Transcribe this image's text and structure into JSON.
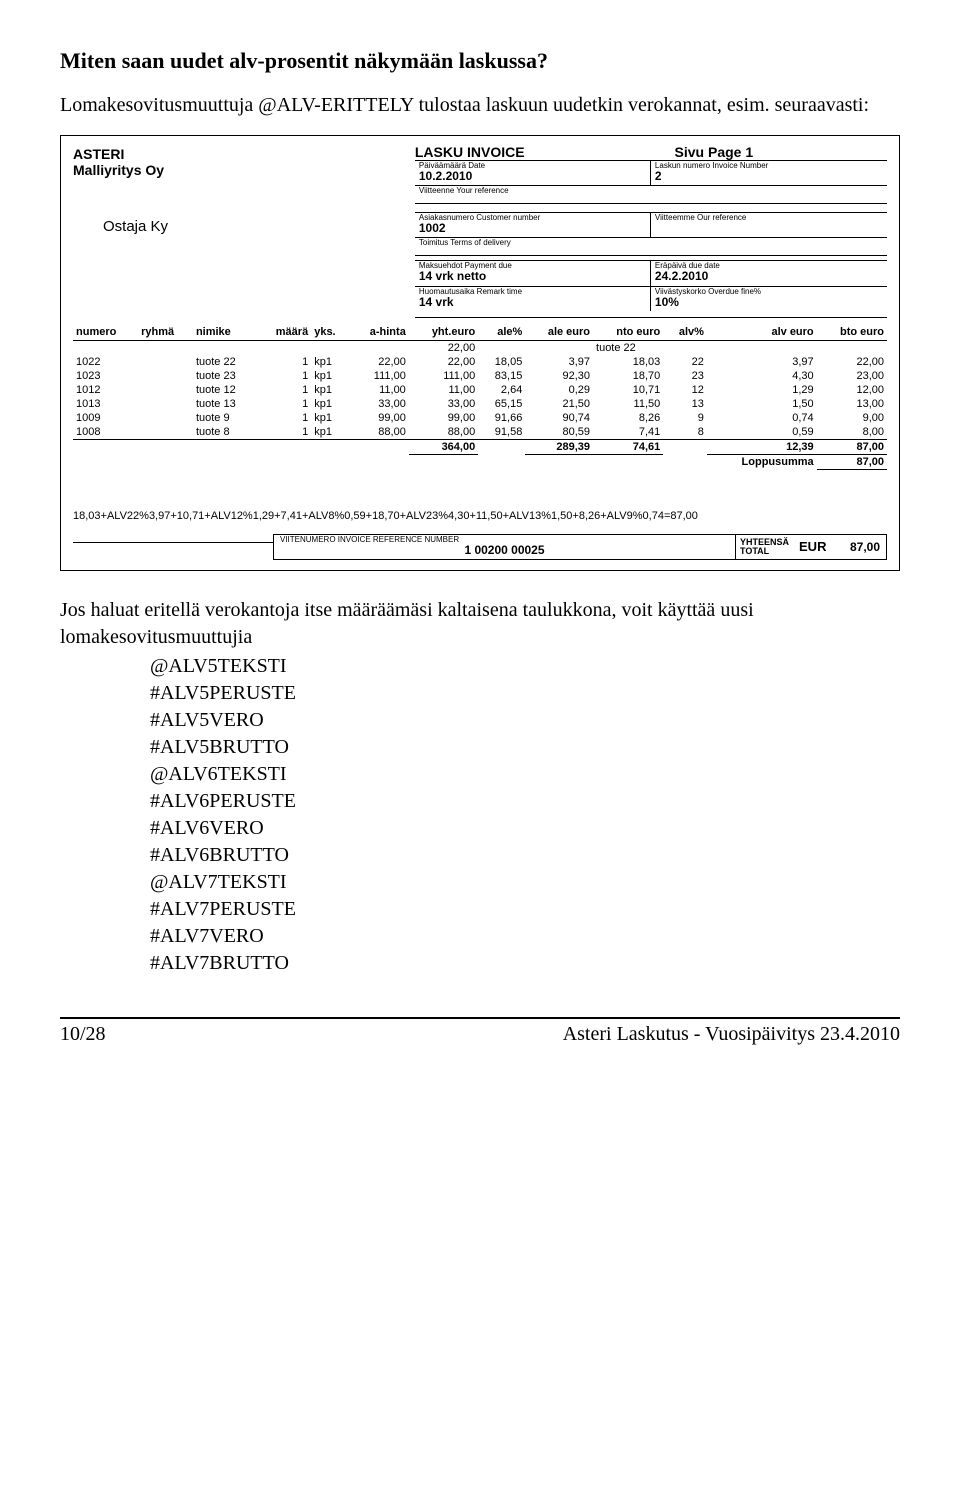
{
  "heading": "Miten saan uudet alv-prosentit näkymään laskussa?",
  "intro": "Lomakesovitusmuuttuja @ALV-ERITTELY tulostaa laskuun uudetkin verokannat, esim. seuraavasti:",
  "invoice": {
    "company_line1": "ASTERI",
    "company_line2": "Malliyritys Oy",
    "buyer": "Ostaja Ky",
    "title": "LASKU INVOICE",
    "page": "Sivu Page 1",
    "meta": {
      "date_label": "Päiväämäärä  Date",
      "date_value": "10.2.2010",
      "invno_label": "Laskun numero  Invoice Number",
      "invno_value": "2",
      "yourref_label": "Viitteenne  Your reference",
      "yourref_value": "",
      "custno_label": "Asiakasnumero  Customer number",
      "custno_value": "1002",
      "ourref_label": "Viitteemme  Our reference",
      "ourref_value": "",
      "delivery_label": "Toimitus  Terms of delivery",
      "delivery_value": "",
      "payterms_label": "Maksuehdot  Payment due",
      "payterms_value": "14 vrk netto",
      "duedate_label": "Eräpäivä  due date",
      "duedate_value": "24.2.2010",
      "remark_label": "Huomautusaika  Remark time",
      "remark_value": "14 vrk",
      "overdue_label": "Viivästyskorko  Overdue fine%",
      "overdue_value": "10%"
    },
    "columns": [
      "numero",
      "ryhmä",
      "nimike",
      "määrä",
      "yks.",
      "a-hinta",
      "yht.euro",
      "ale%",
      "ale euro",
      "nto euro",
      "alv%",
      "alv euro",
      "bto euro"
    ],
    "header_row": {
      "yhteuro": "22,00",
      "nimike": "tuote 22"
    },
    "rows": [
      {
        "numero": "1022",
        "nimike": "tuote 22",
        "maara": "1",
        "yks": "kp1",
        "ahinta": "22,00",
        "yht": "22,00",
        "alep": "18,05",
        "alee": "3,97",
        "nto": "18,03",
        "alvp": "22",
        "alve": "3,97",
        "bto": "22,00"
      },
      {
        "numero": "1023",
        "nimike": "tuote 23",
        "maara": "1",
        "yks": "kp1",
        "ahinta": "111,00",
        "yht": "111,00",
        "alep": "83,15",
        "alee": "92,30",
        "nto": "18,70",
        "alvp": "23",
        "alve": "4,30",
        "bto": "23,00"
      },
      {
        "numero": "1012",
        "nimike": "tuote 12",
        "maara": "1",
        "yks": "kp1",
        "ahinta": "11,00",
        "yht": "11,00",
        "alep": "2,64",
        "alee": "0,29",
        "nto": "10,71",
        "alvp": "12",
        "alve": "1,29",
        "bto": "12,00"
      },
      {
        "numero": "1013",
        "nimike": "tuote 13",
        "maara": "1",
        "yks": "kp1",
        "ahinta": "33,00",
        "yht": "33,00",
        "alep": "65,15",
        "alee": "21,50",
        "nto": "11,50",
        "alvp": "13",
        "alve": "1,50",
        "bto": "13,00"
      },
      {
        "numero": "1009",
        "nimike": "tuote 9",
        "maara": "1",
        "yks": "kp1",
        "ahinta": "99,00",
        "yht": "99,00",
        "alep": "91,66",
        "alee": "90,74",
        "nto": "8,26",
        "alvp": "9",
        "alve": "0,74",
        "bto": "9,00"
      },
      {
        "numero": "1008",
        "nimike": "tuote 8",
        "maara": "1",
        "yks": "kp1",
        "ahinta": "88,00",
        "yht": "88,00",
        "alep": "91,58",
        "alee": "80,59",
        "nto": "7,41",
        "alvp": "8",
        "alve": "0,59",
        "bto": "8,00"
      }
    ],
    "sums": {
      "yht": "364,00",
      "nto_a": "289,39",
      "nto_b": "74,61",
      "alve": "12,39",
      "bto": "87,00"
    },
    "loppusumma_label": "Loppusumma",
    "loppusumma_value": "87,00",
    "calc_line": "18,03+ALV22%3,97+10,71+ALV12%1,29+7,41+ALV8%0,59+18,70+ALV23%4,30+11,50+ALV13%1,50+8,26+ALV9%0,74=87,00",
    "ref_label": "VIITENUMERO INVOICE REFERENCE NUMBER",
    "ref_value": "1 00200 00025",
    "total_label1": "YHTEENSÄ",
    "total_label2": "TOTAL",
    "total_currency": "EUR",
    "total_value": "87,00"
  },
  "below_text": "Jos haluat eritellä verokantoja itse määräämäsi kaltaisena taulukkona, voit käyttää uusi lomakesovitusmuuttujia",
  "vars": [
    "@ALV5TEKSTI",
    "#ALV5PERUSTE",
    "#ALV5VERO",
    "#ALV5BRUTTO",
    "@ALV6TEKSTI",
    "#ALV6PERUSTE",
    "#ALV6VERO",
    "#ALV6BRUTTO",
    "@ALV7TEKSTI",
    "#ALV7PERUSTE",
    "#ALV7VERO",
    "#ALV7BRUTTO"
  ],
  "footer_left": "10/28",
  "footer_right": "Asteri Laskutus - Vuosipäivitys 23.4.2010"
}
